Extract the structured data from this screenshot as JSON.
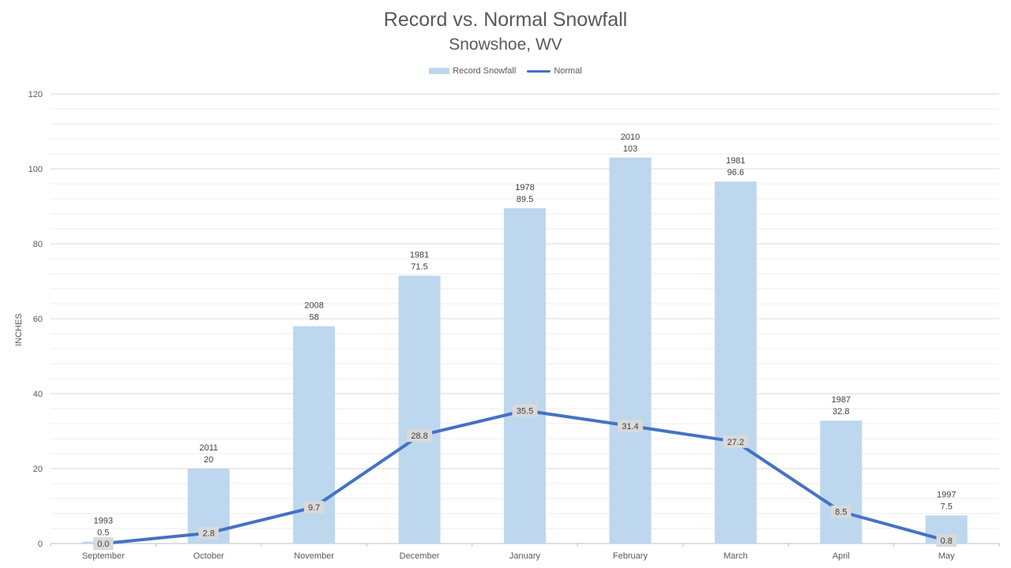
{
  "chart_data": {
    "type": "bar",
    "title": "Record vs. Normal Snowfall",
    "subtitle": "Snowshoe, WV",
    "xlabel": "",
    "ylabel": "INCHES",
    "ylim": [
      0,
      120
    ],
    "yticks": [
      0,
      20,
      40,
      60,
      80,
      100,
      120
    ],
    "grid": true,
    "legend_position": "top",
    "categories": [
      "September",
      "October",
      "November",
      "December",
      "January",
      "February",
      "March",
      "April",
      "May"
    ],
    "series": [
      {
        "name": "Record Snowfall",
        "type": "bar",
        "color": "#bdd7ee",
        "values": [
          0.5,
          20,
          58,
          71.5,
          89.5,
          103,
          96.6,
          32.8,
          7.5
        ],
        "record_years": [
          "1993",
          "2011",
          "2008",
          "1981",
          "1978",
          "2010",
          "1981",
          "1987",
          "1997"
        ],
        "value_labels": [
          "0.5",
          "20",
          "58",
          "71.5",
          "89.5",
          "103",
          "96.6",
          "32.8",
          "7.5"
        ]
      },
      {
        "name": "Normal",
        "type": "line",
        "color": "#4472c4",
        "values": [
          0.0,
          2.8,
          9.7,
          28.8,
          35.5,
          31.4,
          27.2,
          8.5,
          0.8
        ],
        "value_labels": [
          "0.0",
          "2.8",
          "9.7",
          "28.8",
          "35.5",
          "31.4",
          "27.2",
          "8.5",
          "0.8"
        ]
      }
    ]
  },
  "colors": {
    "text": "#595959",
    "gridline": "#d9d9d9",
    "label_box": "#d9d9d9"
  }
}
